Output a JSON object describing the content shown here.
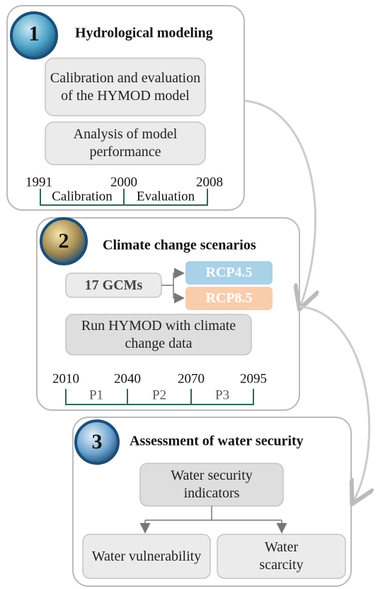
{
  "panels": [
    {
      "number": "1",
      "title": "Hydrological modeling",
      "boxes": [
        "Calibration and evaluation of the HYMOD model",
        "Analysis of model performance"
      ],
      "timeline": {
        "years": [
          "1991",
          "2000",
          "2008"
        ],
        "periods": [
          "Calibration",
          "Evaluation"
        ]
      }
    },
    {
      "number": "2",
      "title": "Climate change scenarios",
      "gcm": "17 GCMs",
      "rcps": [
        "RCP4.5",
        "RCP8.5"
      ],
      "boxes": [
        "Run HYMOD with climate change data"
      ],
      "timeline": {
        "years": [
          "2010",
          "2040",
          "2070",
          "2095"
        ],
        "periods": [
          "P1",
          "P2",
          "P3"
        ]
      }
    },
    {
      "number": "3",
      "title": "Assessment of water security",
      "boxes": [
        "Water security indicators"
      ],
      "outputs": [
        "Water vulnerability",
        "Water scarcity"
      ]
    }
  ]
}
